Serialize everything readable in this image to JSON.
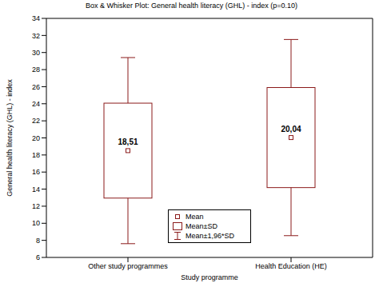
{
  "chart_data": {
    "type": "box",
    "title": "Box & Whisker Plot: General health literacy (GHL) - index (p=0.10)",
    "x_label": "Study programme",
    "y_label": "General health literacy (GHL) - index",
    "categories": [
      "Other study programmes",
      "Health Education (HE)"
    ],
    "values": [
      18.51,
      20.04
    ],
    "value_labels": [
      "18,51",
      "20,04"
    ],
    "box_low": [
      12.95,
      14.18
    ],
    "box_high": [
      24.07,
      25.9
    ],
    "whisker_low": [
      7.61,
      8.55
    ],
    "whisker_high": [
      29.41,
      31.53
    ],
    "color": "#8b1a1a",
    "ylim": [
      6,
      34
    ],
    "yticks": [
      6,
      8,
      10,
      12,
      14,
      16,
      18,
      20,
      22,
      24,
      26,
      28,
      30,
      32,
      34
    ],
    "grid": false,
    "data_labels": true,
    "legend": "bottom",
    "legend_labels": [
      "Mean",
      "Mean±SD",
      "Mean±1,96*SD"
    ]
  }
}
